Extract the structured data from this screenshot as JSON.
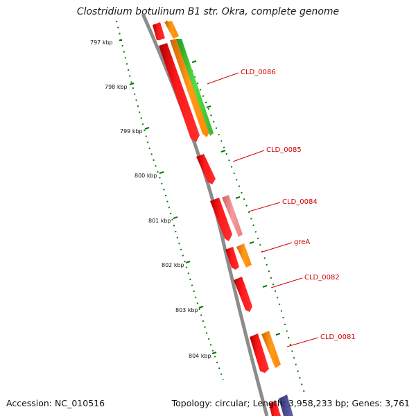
{
  "title": "Clostridium botulinum B1 str. Okra, complete genome",
  "footer": {
    "accession": "Accession: NC_010516",
    "summary": "Topology: circular; Length: 3,958,233 bp; Genes: 3,761"
  },
  "kbp_labels": [
    "797 kbp",
    "798 kbp",
    "799 kbp",
    "800 kbp",
    "801 kbp",
    "802 kbp",
    "803 kbp",
    "804 kbp"
  ],
  "gene_labels": [
    "CLD_0086",
    "CLD_0085",
    "CLD_0084",
    "greA",
    "CLD_0082",
    "CLD_0081"
  ],
  "colors": {
    "cds": "#ff0000",
    "gene": "#ff8c00",
    "gene_green": "#33cc33",
    "pseudo": "#f08080",
    "backbone": "#888888",
    "ticks": "#007700",
    "label": "#d40000"
  }
}
